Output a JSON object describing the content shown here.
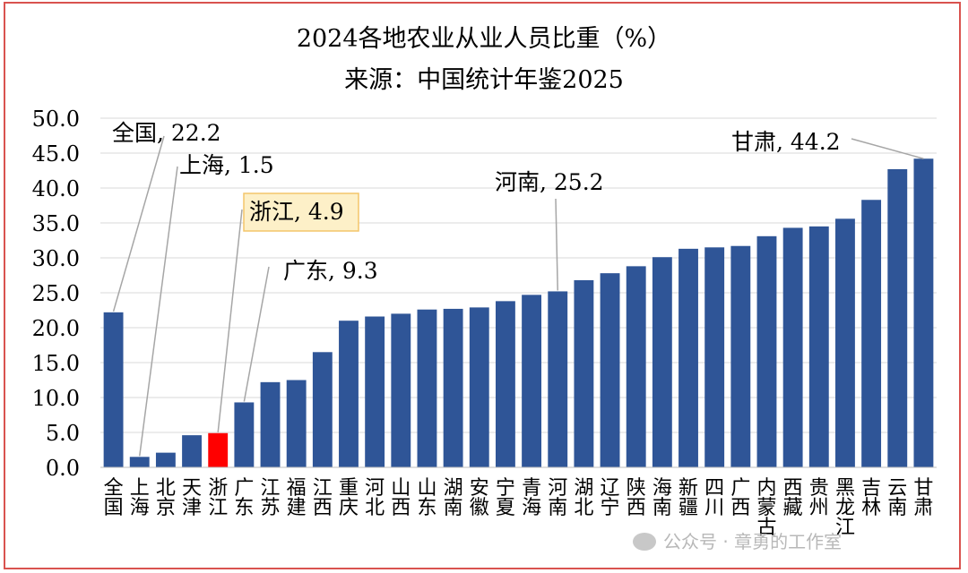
{
  "chart_data": {
    "type": "bar",
    "title": "2024各地农业从业人员比重（%）",
    "subtitle": "来源：中国统计年鉴2025",
    "ylim": [
      0,
      50
    ],
    "yticks": [
      "0.0",
      "5.0",
      "10.0",
      "15.0",
      "20.0",
      "25.0",
      "30.0",
      "35.0",
      "40.0",
      "45.0",
      "50.0"
    ],
    "grid": true,
    "categories": [
      "全国",
      "上海",
      "北京",
      "天津",
      "浙江",
      "广东",
      "江苏",
      "福建",
      "江西",
      "重庆",
      "河北",
      "山西",
      "山东",
      "湖南",
      "安徽",
      "宁夏",
      "青海",
      "河南",
      "湖北",
      "辽宁",
      "陕西",
      "海南",
      "新疆",
      "四川",
      "广西",
      "内蒙古",
      "西藏",
      "贵州",
      "黑龙江",
      "吉林",
      "云南",
      "甘肃"
    ],
    "values": [
      22.2,
      1.5,
      2.1,
      4.6,
      4.9,
      9.3,
      12.2,
      12.5,
      16.5,
      21.0,
      21.6,
      22.0,
      22.6,
      22.7,
      22.9,
      23.8,
      24.7,
      25.2,
      26.8,
      27.8,
      28.8,
      30.1,
      31.3,
      31.5,
      31.7,
      33.1,
      34.3,
      34.5,
      35.6,
      38.3,
      42.7,
      44.2
    ],
    "colors": {
      "default": "#2f5597",
      "highlight": "#ff0000",
      "grid": "#d9d9d9",
      "callout_bg": "#fdf0c8",
      "callout_border": "#f4c56a",
      "leader": "#a6a6a6"
    },
    "highlight": [
      "浙江"
    ],
    "annotations": [
      {
        "category": "全国",
        "text": "全国, 22.2",
        "boxed": false
      },
      {
        "category": "上海",
        "text": "上海, 1.5",
        "boxed": false
      },
      {
        "category": "浙江",
        "text": "浙江, 4.9",
        "boxed": true
      },
      {
        "category": "广东",
        "text": "广东, 9.3",
        "boxed": false
      },
      {
        "category": "河南",
        "text": "河南, 25.2",
        "boxed": false
      },
      {
        "category": "甘肃",
        "text": "甘肃, 44.2",
        "boxed": false
      }
    ]
  },
  "watermark": "公众号 · 章勇的工作室"
}
